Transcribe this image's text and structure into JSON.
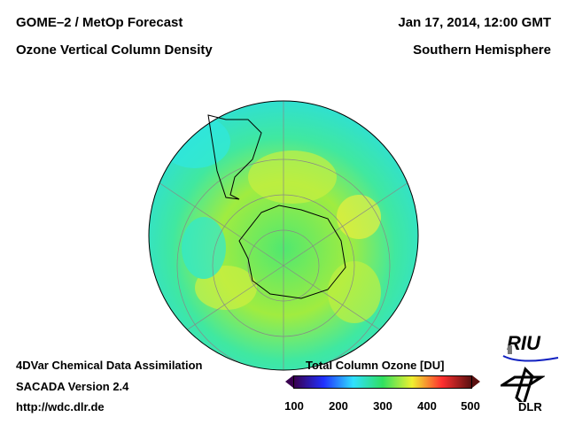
{
  "header": {
    "title_left_1": "GOME–2 / MetOp Forecast",
    "title_left_2": "Ozone Vertical Column Density",
    "title_right_1": "Jan 17, 2014, 12:00 GMT",
    "title_right_2": "Southern Hemisphere"
  },
  "footer": {
    "line1": "4DVar Chemical Data Assimilation",
    "line2": "SACADA Version 2.4",
    "line3": "http://wdc.dlr.de"
  },
  "colorbar": {
    "title": "Total Column Ozone [DU]",
    "ticks": [
      "100",
      "200",
      "300",
      "400",
      "500"
    ],
    "colors": [
      "#3a0050",
      "#2030ff",
      "#30e0ff",
      "#30e060",
      "#f0f030",
      "#ff3030",
      "#5a1010"
    ]
  },
  "logos": {
    "riu": "RIU",
    "dlr": "DLR"
  }
}
